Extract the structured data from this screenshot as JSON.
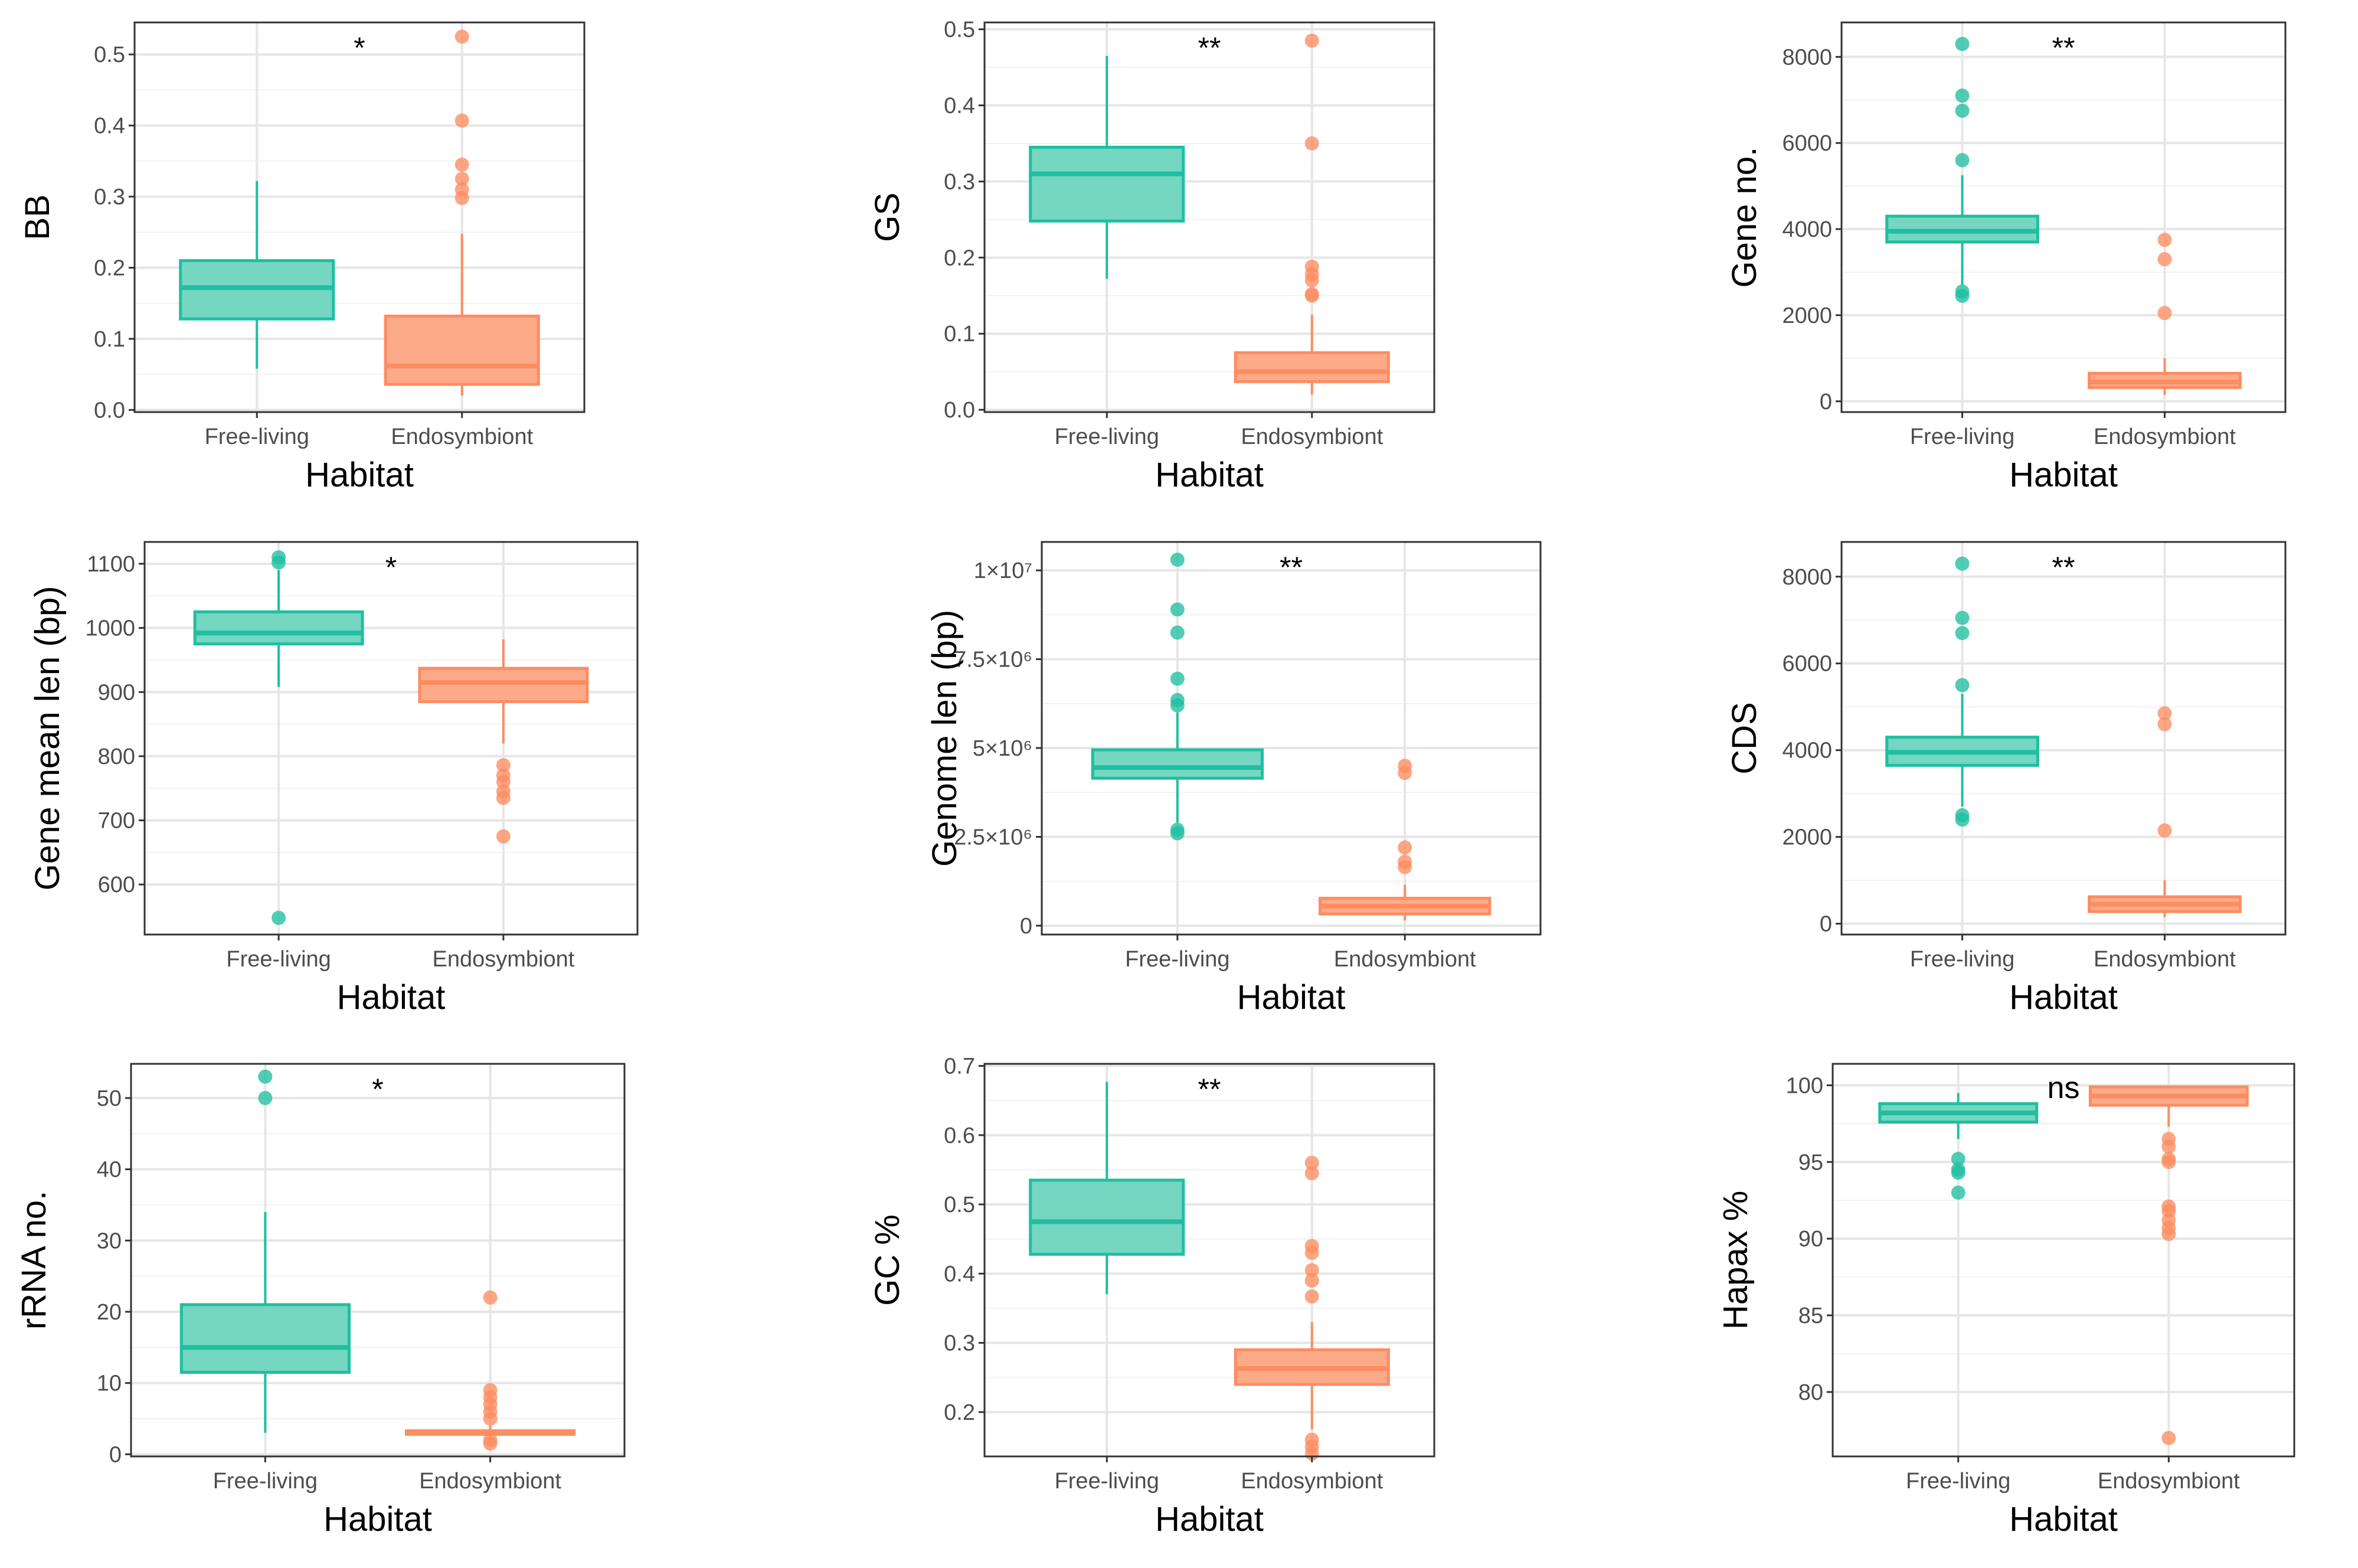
{
  "colors": {
    "free_living": "#1fbf9f",
    "free_living_fill": "#75d6c2",
    "endosymbiont": "#fc8d62",
    "endosymbiont_fill": "#fdaa88"
  },
  "chart_data": [
    {
      "type": "box",
      "id": "bb",
      "title": "",
      "xlabel": "Habitat",
      "ylabel": "BB",
      "categories": [
        "Free-living",
        "Endosymbiont"
      ],
      "ylim": [
        -0.003,
        0.545
      ],
      "yticks": [
        0.0,
        0.1,
        0.2,
        0.3,
        0.4,
        0.5
      ],
      "ytick_labels": [
        "0.0",
        "0.1",
        "0.2",
        "0.3",
        "0.4",
        "0.5"
      ],
      "significance": "*",
      "boxes": [
        {
          "name": "Free-living",
          "q1": 0.128,
          "median": 0.172,
          "q3": 0.21,
          "whisker_low": 0.058,
          "whisker_high": 0.322,
          "outliers": []
        },
        {
          "name": "Endosymbiont",
          "q1": 0.036,
          "median": 0.062,
          "q3": 0.132,
          "whisker_low": 0.02,
          "whisker_high": 0.248,
          "outliers": [
            0.298,
            0.31,
            0.325,
            0.345,
            0.407,
            0.525
          ]
        }
      ]
    },
    {
      "type": "box",
      "id": "gs",
      "title": "",
      "xlabel": "Habitat",
      "ylabel": "GS",
      "categories": [
        "Free-living",
        "Endosymbiont"
      ],
      "ylim": [
        -0.003,
        0.509
      ],
      "yticks": [
        0.0,
        0.1,
        0.2,
        0.3,
        0.4,
        0.5
      ],
      "ytick_labels": [
        "0.0",
        "0.1",
        "0.2",
        "0.3",
        "0.4",
        "0.5"
      ],
      "significance": "**",
      "boxes": [
        {
          "name": "Free-living",
          "q1": 0.248,
          "median": 0.31,
          "q3": 0.345,
          "whisker_low": 0.172,
          "whisker_high": 0.465,
          "outliers": []
        },
        {
          "name": "Endosymbiont",
          "q1": 0.037,
          "median": 0.05,
          "q3": 0.075,
          "whisker_low": 0.02,
          "whisker_high": 0.125,
          "outliers": [
            0.15,
            0.152,
            0.17,
            0.178,
            0.188,
            0.35,
            0.485
          ]
        }
      ]
    },
    {
      "type": "box",
      "id": "gene_no",
      "title": "",
      "xlabel": "Habitat",
      "ylabel": "Gene no.",
      "categories": [
        "Free-living",
        "Endosymbiont"
      ],
      "ylim": [
        -250,
        8800
      ],
      "yticks": [
        0,
        2000,
        4000,
        6000,
        8000
      ],
      "ytick_labels": [
        "0",
        "2000",
        "4000",
        "6000",
        "8000"
      ],
      "significance": "**",
      "boxes": [
        {
          "name": "Free-living",
          "q1": 3700,
          "median": 3950,
          "q3": 4300,
          "whisker_low": 2700,
          "whisker_high": 5250,
          "outliers": [
            2450,
            2550,
            5600,
            6750,
            7100,
            8300
          ]
        },
        {
          "name": "Endosymbiont",
          "q1": 320,
          "median": 450,
          "q3": 650,
          "whisker_low": 150,
          "whisker_high": 1000,
          "outliers": [
            2050,
            3300,
            3750
          ]
        }
      ]
    },
    {
      "type": "box",
      "id": "gene_mean_len",
      "title": "",
      "xlabel": "Habitat",
      "ylabel": "Gene mean len (bp)",
      "categories": [
        "Free-living",
        "Endosymbiont"
      ],
      "ylim": [
        522,
        1134
      ],
      "yticks": [
        600,
        700,
        800,
        900,
        1000,
        1100
      ],
      "ytick_labels": [
        "600",
        "700",
        "800",
        "900",
        "1000",
        "1100"
      ],
      "significance": "*",
      "boxes": [
        {
          "name": "Free-living",
          "q1": 975,
          "median": 992,
          "q3": 1025,
          "whisker_low": 908,
          "whisker_high": 1090,
          "outliers": [
            548,
            1102,
            1110
          ]
        },
        {
          "name": "Endosymbiont",
          "q1": 885,
          "median": 915,
          "q3": 937,
          "whisker_low": 820,
          "whisker_high": 982,
          "outliers": [
            675,
            735,
            745,
            760,
            770,
            786
          ]
        }
      ]
    },
    {
      "type": "box",
      "id": "genome_len",
      "title": "",
      "xlabel": "Habitat",
      "ylabel": "Genome len (bp)",
      "categories": [
        "Free-living",
        "Endosymbiont"
      ],
      "ylim": [
        -250000,
        10800000
      ],
      "yticks": [
        0,
        2500000,
        5000000,
        7500000,
        10000000
      ],
      "ytick_labels": [
        "0",
        "2.5×10⁶",
        "5×10⁶",
        "7.5×10⁶",
        "1×10⁷"
      ],
      "significance": "**",
      "boxes": [
        {
          "name": "Free-living",
          "q1": 4150000,
          "median": 4450000,
          "q3": 4950000,
          "whisker_low": 2900000,
          "whisker_high": 6000000,
          "outliers": [
            2600000,
            2700000,
            6200000,
            6350000,
            6950000,
            8250000,
            8900000,
            10300000
          ]
        },
        {
          "name": "Endosymbiont",
          "q1": 330000,
          "median": 550000,
          "q3": 770000,
          "whisker_low": 150000,
          "whisker_high": 1150000,
          "outliers": [
            1650000,
            1800000,
            2200000,
            4300000,
            4500000
          ]
        }
      ]
    },
    {
      "type": "box",
      "id": "cds",
      "title": "",
      "xlabel": "Habitat",
      "ylabel": "CDS",
      "categories": [
        "Free-living",
        "Endosymbiont"
      ],
      "ylim": [
        -250,
        8800
      ],
      "yticks": [
        0,
        2000,
        4000,
        6000,
        8000
      ],
      "ytick_labels": [
        "0",
        "2000",
        "4000",
        "6000",
        "8000"
      ],
      "significance": "**",
      "boxes": [
        {
          "name": "Free-living",
          "q1": 3650,
          "median": 3950,
          "q3": 4300,
          "whisker_low": 2700,
          "whisker_high": 5300,
          "outliers": [
            2400,
            2500,
            5500,
            6700,
            7050,
            8300
          ]
        },
        {
          "name": "Endosymbiont",
          "q1": 280,
          "median": 450,
          "q3": 620,
          "whisker_low": 150,
          "whisker_high": 1000,
          "outliers": [
            2150,
            4600,
            4850
          ]
        }
      ]
    },
    {
      "type": "box",
      "id": "rrna_no",
      "title": "",
      "xlabel": "Habitat",
      "ylabel": "rRNA no.",
      "categories": [
        "Free-living",
        "Endosymbiont"
      ],
      "ylim": [
        -0.3,
        54.8
      ],
      "yticks": [
        0,
        10,
        20,
        30,
        40,
        50
      ],
      "ytick_labels": [
        "0",
        "10",
        "20",
        "30",
        "40",
        "50"
      ],
      "significance": "*",
      "boxes": [
        {
          "name": "Free-living",
          "q1": 11.5,
          "median": 15,
          "q3": 21,
          "whisker_low": 3,
          "whisker_high": 34,
          "outliers": [
            50,
            53
          ]
        },
        {
          "name": "Endosymbiont",
          "q1": 2.8,
          "median": 3,
          "q3": 3.3,
          "whisker_low": 2,
          "whisker_high": 4,
          "outliers": [
            1.5,
            2,
            5,
            6,
            7,
            8,
            9,
            22
          ]
        }
      ]
    },
    {
      "type": "box",
      "id": "gc",
      "title": "",
      "xlabel": "Habitat",
      "ylabel": "GC %",
      "categories": [
        "Free-living",
        "Endosymbiont"
      ],
      "ylim": [
        0.136,
        0.703
      ],
      "yticks": [
        0.2,
        0.3,
        0.4,
        0.5,
        0.6,
        0.7
      ],
      "ytick_labels": [
        "0.2",
        "0.3",
        "0.4",
        "0.5",
        "0.6",
        "0.7"
      ],
      "significance": "**",
      "boxes": [
        {
          "name": "Free-living",
          "q1": 0.428,
          "median": 0.475,
          "q3": 0.535,
          "whisker_low": 0.37,
          "whisker_high": 0.677,
          "outliers": []
        },
        {
          "name": "Endosymbiont",
          "q1": 0.24,
          "median": 0.263,
          "q3": 0.29,
          "whisker_low": 0.175,
          "whisker_high": 0.33,
          "outliers": [
            0.14,
            0.15,
            0.16,
            0.367,
            0.39,
            0.405,
            0.43,
            0.44,
            0.545,
            0.56
          ]
        }
      ]
    },
    {
      "type": "box",
      "id": "hapax",
      "title": "",
      "xlabel": "Habitat",
      "ylabel": "Hapax %",
      "categories": [
        "Free-living",
        "Endosymbiont"
      ],
      "ylim": [
        75.8,
        101.4
      ],
      "yticks": [
        80,
        85,
        90,
        95,
        100
      ],
      "ytick_labels": [
        "80",
        "85",
        "90",
        "95",
        "100"
      ],
      "significance": "ns",
      "boxes": [
        {
          "name": "Free-living",
          "q1": 97.6,
          "median": 98.2,
          "q3": 98.8,
          "whisker_low": 96.5,
          "whisker_high": 99.5,
          "outliers": [
            93,
            94.3,
            94.5,
            95.2
          ]
        },
        {
          "name": "Endosymbiont",
          "q1": 98.7,
          "median": 99.3,
          "q3": 99.9,
          "whisker_low": 97.3,
          "whisker_high": 100,
          "outliers": [
            77,
            90.3,
            90.7,
            91.2,
            91.8,
            92.1,
            95,
            95.2,
            96,
            96.5
          ]
        }
      ]
    }
  ]
}
